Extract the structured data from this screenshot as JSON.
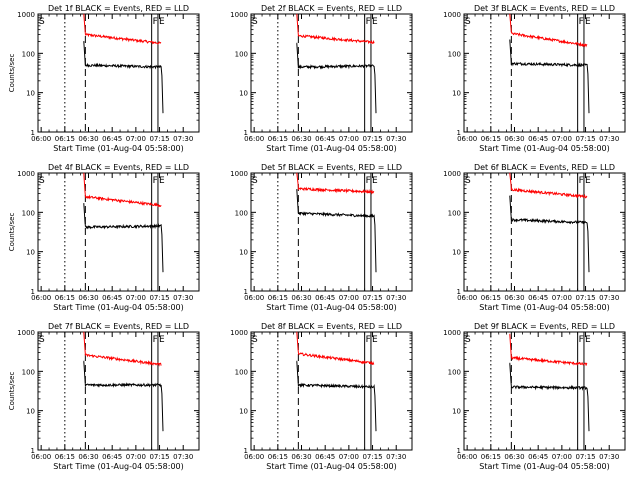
{
  "chart_data": [
    {
      "type": "line",
      "title": "Det 1f BLACK = Events, RED = LLD",
      "xlabel": "Start Time (01-Aug-04 05:58:00)",
      "ylabel": "Counts/sec",
      "ylim": [
        1,
        1000
      ],
      "log_y": true,
      "x_ticks": [
        "06:00",
        "06:15",
        "06:30",
        "06:45",
        "07:00",
        "07:15",
        "07:30"
      ],
      "y_ticks": [
        "1",
        "10",
        "100",
        "1000"
      ],
      "markers": [
        "S",
        "F",
        "E"
      ],
      "series": [
        {
          "name": "LLD",
          "color": "#ff0000",
          "level_start": 300,
          "level_end": 180
        },
        {
          "name": "Events",
          "color": "#000000",
          "level_start": 50,
          "level_end": 45
        }
      ]
    },
    {
      "type": "line",
      "title": "Det 2f BLACK = Events, RED = LLD",
      "xlabel": "Start Time (01-Aug-04 05:58:00)",
      "ylabel": "",
      "ylim": [
        1,
        1000
      ],
      "log_y": true,
      "x_ticks": [
        "06:00",
        "06:15",
        "06:30",
        "06:45",
        "07:00",
        "07:15",
        "07:30"
      ],
      "y_ticks": [
        "1",
        "10",
        "100",
        "1000"
      ],
      "markers": [
        "S",
        "F",
        "E"
      ],
      "series": [
        {
          "name": "LLD",
          "color": "#ff0000",
          "level_start": 280,
          "level_end": 190
        },
        {
          "name": "Events",
          "color": "#000000",
          "level_start": 45,
          "level_end": 48
        }
      ]
    },
    {
      "type": "line",
      "title": "Det 3f BLACK = Events, RED = LLD",
      "xlabel": "Start Time (01-Aug-04 05:58:00)",
      "ylabel": "",
      "ylim": [
        1,
        1000
      ],
      "log_y": true,
      "x_ticks": [
        "06:00",
        "06:15",
        "06:30",
        "06:45",
        "07:00",
        "07:15",
        "07:30"
      ],
      "y_ticks": [
        "1",
        "10",
        "100",
        "1000"
      ],
      "markers": [
        "S",
        "F",
        "E"
      ],
      "series": [
        {
          "name": "LLD",
          "color": "#ff0000",
          "level_start": 320,
          "level_end": 160
        },
        {
          "name": "Events",
          "color": "#000000",
          "level_start": 55,
          "level_end": 50
        }
      ]
    },
    {
      "type": "line",
      "title": "Det 4f BLACK = Events, RED = LLD",
      "xlabel": "Start Time (01-Aug-04 05:58:00)",
      "ylabel": "Counts/sec",
      "ylim": [
        1,
        1000
      ],
      "log_y": true,
      "x_ticks": [
        "06:00",
        "06:15",
        "06:30",
        "06:45",
        "07:00",
        "07:15",
        "07:30"
      ],
      "y_ticks": [
        "1",
        "10",
        "100",
        "1000"
      ],
      "markers": [
        "S",
        "F",
        "E"
      ],
      "series": [
        {
          "name": "LLD",
          "color": "#ff0000",
          "level_start": 250,
          "level_end": 150
        },
        {
          "name": "Events",
          "color": "#000000",
          "level_start": 42,
          "level_end": 45
        }
      ]
    },
    {
      "type": "line",
      "title": "Det 5f BLACK = Events, RED = LLD",
      "xlabel": "Start Time (01-Aug-04 05:58:00)",
      "ylabel": "",
      "ylim": [
        1,
        1000
      ],
      "log_y": true,
      "x_ticks": [
        "06:00",
        "06:15",
        "06:30",
        "06:45",
        "07:00",
        "07:15",
        "07:30"
      ],
      "y_ticks": [
        "1",
        "10",
        "100",
        "1000"
      ],
      "markers": [
        "S",
        "F",
        "E"
      ],
      "series": [
        {
          "name": "LLD",
          "color": "#ff0000",
          "level_start": 400,
          "level_end": 330
        },
        {
          "name": "Events",
          "color": "#000000",
          "level_start": 95,
          "level_end": 80
        }
      ]
    },
    {
      "type": "line",
      "title": "Det 6f BLACK = Events, RED = LLD",
      "xlabel": "Start Time (01-Aug-04 05:58:00)",
      "ylabel": "",
      "ylim": [
        1,
        1000
      ],
      "log_y": true,
      "x_ticks": [
        "06:00",
        "06:15",
        "06:30",
        "06:45",
        "07:00",
        "07:15",
        "07:30"
      ],
      "y_ticks": [
        "1",
        "10",
        "100",
        "1000"
      ],
      "markers": [
        "S",
        "F",
        "E"
      ],
      "series": [
        {
          "name": "LLD",
          "color": "#ff0000",
          "level_start": 380,
          "level_end": 250
        },
        {
          "name": "Events",
          "color": "#000000",
          "level_start": 65,
          "level_end": 55
        }
      ]
    },
    {
      "type": "line",
      "title": "Det 7f BLACK = Events, RED = LLD",
      "xlabel": "Start Time (01-Aug-04 05:58:00)",
      "ylabel": "Counts/sec",
      "ylim": [
        1,
        1000
      ],
      "log_y": true,
      "x_ticks": [
        "06:00",
        "06:15",
        "06:30",
        "06:45",
        "07:00",
        "07:15",
        "07:30"
      ],
      "y_ticks": [
        "1",
        "10",
        "100",
        "1000"
      ],
      "markers": [
        "S",
        "F",
        "E"
      ],
      "series": [
        {
          "name": "LLD",
          "color": "#ff0000",
          "level_start": 260,
          "level_end": 150
        },
        {
          "name": "Events",
          "color": "#000000",
          "level_start": 45,
          "level_end": 45
        }
      ]
    },
    {
      "type": "line",
      "title": "Det 8f BLACK = Events, RED = LLD",
      "xlabel": "Start Time (01-Aug-04 05:58:00)",
      "ylabel": "",
      "ylim": [
        1,
        1000
      ],
      "log_y": true,
      "x_ticks": [
        "06:00",
        "06:15",
        "06:30",
        "06:45",
        "07:00",
        "07:15",
        "07:30"
      ],
      "y_ticks": [
        "1",
        "10",
        "100",
        "1000"
      ],
      "markers": [
        "S",
        "F",
        "E"
      ],
      "series": [
        {
          "name": "LLD",
          "color": "#ff0000",
          "level_start": 280,
          "level_end": 160
        },
        {
          "name": "Events",
          "color": "#000000",
          "level_start": 45,
          "level_end": 40
        }
      ]
    },
    {
      "type": "line",
      "title": "Det 9f BLACK = Events, RED = LLD",
      "xlabel": "Start Time (01-Aug-04 05:58:00)",
      "ylabel": "",
      "ylim": [
        1,
        1000
      ],
      "log_y": true,
      "x_ticks": [
        "06:00",
        "06:15",
        "06:30",
        "06:45",
        "07:00",
        "07:15",
        "07:30"
      ],
      "y_ticks": [
        "1",
        "10",
        "100",
        "1000"
      ],
      "markers": [
        "S",
        "F",
        "E"
      ],
      "series": [
        {
          "name": "LLD",
          "color": "#ff0000",
          "level_start": 220,
          "level_end": 150
        },
        {
          "name": "Events",
          "color": "#000000",
          "level_start": 40,
          "level_end": 38
        }
      ]
    }
  ]
}
